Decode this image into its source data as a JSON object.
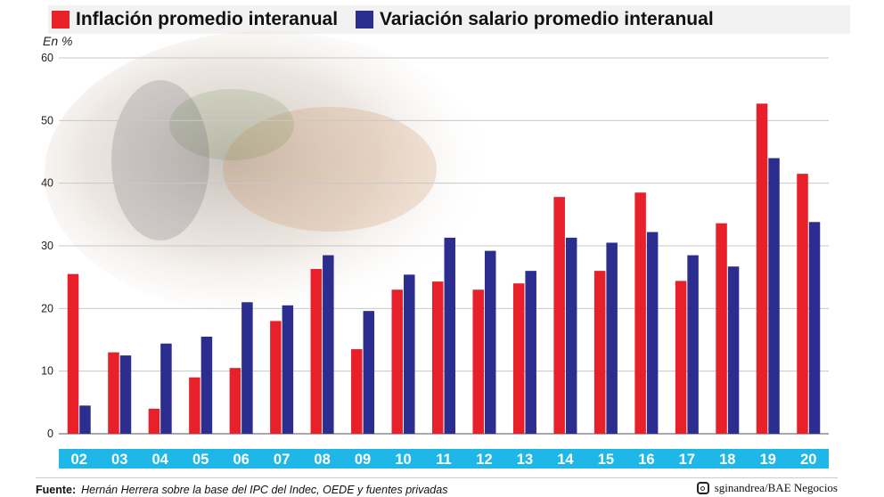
{
  "legend": {
    "series1_label": "Inflación promedio interanual",
    "series2_label": "Variación salario promedio interanual"
  },
  "unit_label": "En %",
  "source": {
    "prefix": "Fuente:",
    "text": "Hernán Herrera sobre la base del IPC del Indec, OEDE y fuentes privadas"
  },
  "credit": {
    "icon": "instagram-icon",
    "text": "sginandrea/BAE Negocios"
  },
  "colors": {
    "inflation": "#e8202a",
    "salary": "#2b2e8f",
    "axis_band": "#1fb6e8",
    "grid": "#c8c8c8"
  },
  "chart_data": {
    "type": "bar",
    "categories": [
      "02",
      "03",
      "04",
      "05",
      "06",
      "07",
      "08",
      "09",
      "10",
      "11",
      "12",
      "13",
      "14",
      "15",
      "16",
      "17",
      "18",
      "19",
      "20"
    ],
    "series": [
      {
        "name": "Inflación promedio interanual",
        "values": [
          25.5,
          13.0,
          4.0,
          9.0,
          10.5,
          18.0,
          26.3,
          13.5,
          23.0,
          24.3,
          23.0,
          24.0,
          37.8,
          26.0,
          38.5,
          24.4,
          33.6,
          52.7,
          41.5
        ]
      },
      {
        "name": "Variación salario promedio interanual",
        "values": [
          4.5,
          12.5,
          14.4,
          15.5,
          21.0,
          20.5,
          28.5,
          19.6,
          25.4,
          31.3,
          29.2,
          26.0,
          31.3,
          30.5,
          32.2,
          28.5,
          26.7,
          44.0,
          33.8
        ]
      }
    ],
    "yticks": [
      "0",
      "10",
      "20",
      "30",
      "40",
      "50",
      "60"
    ],
    "ylim": [
      0,
      60
    ],
    "ylabel": "En %",
    "grid": true,
    "legend_position": "top"
  }
}
